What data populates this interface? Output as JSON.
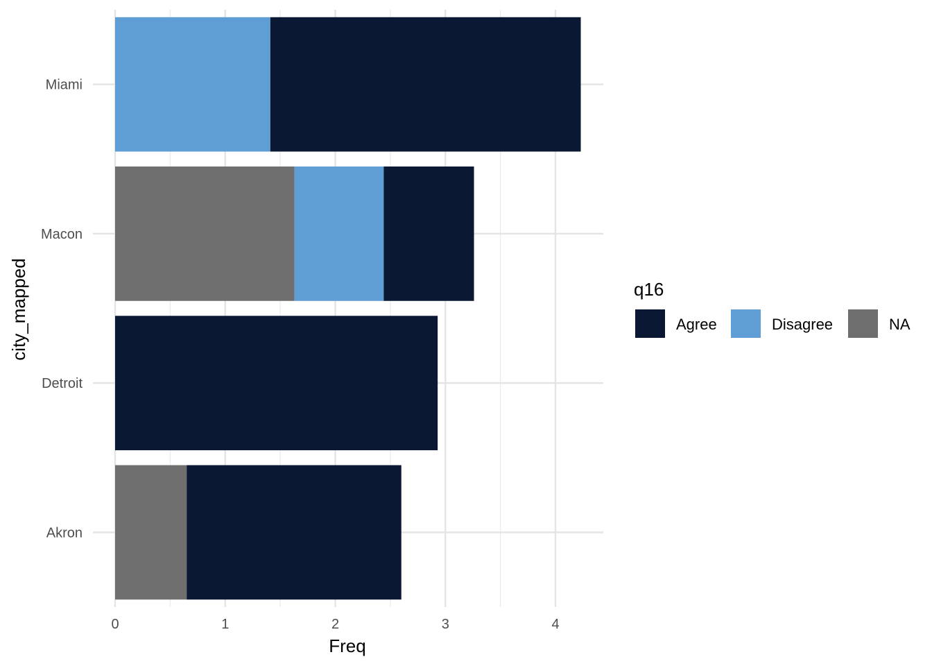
{
  "chart_data": {
    "type": "bar",
    "orientation": "horizontal",
    "stacked": true,
    "xlabel": "Freq",
    "ylabel": "city_mapped",
    "xlim": [
      0,
      4.4
    ],
    "x_ticks": [
      0,
      1,
      2,
      3,
      4
    ],
    "categories": [
      "Akron",
      "Detroit",
      "Macon",
      "Miami"
    ],
    "stack_order": [
      "NA",
      "Disagree",
      "Agree"
    ],
    "series": [
      {
        "name": "Agree",
        "color": "#0a1833",
        "values": [
          1.95,
          2.93,
          0.82,
          2.82
        ]
      },
      {
        "name": "Disagree",
        "color": "#5f9dd5",
        "values": [
          0,
          0,
          0.81,
          1.41
        ]
      },
      {
        "name": "NA",
        "color": "#6e6e6e",
        "values": [
          0.65,
          0,
          1.63,
          0
        ]
      }
    ],
    "legend": {
      "title": "q16",
      "position": "right",
      "entries": [
        "Agree",
        "Disagree",
        "NA"
      ]
    },
    "grid": true
  }
}
